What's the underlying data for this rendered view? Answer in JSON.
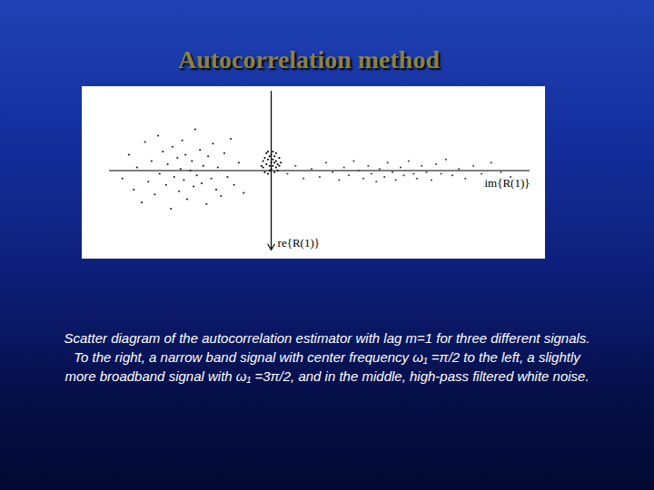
{
  "chart_data": {
    "type": "scatter",
    "title": "Autocorrelation method",
    "caption": [
      "Scatter diagram of the autocorrelation estimator with lag m=1 for three different signals.",
      "To the right, a narrow band signal with center frequency ω₁ =π/2 to the left, a slightly",
      "more broadband signal with ω₁ =3π/2, and in the middle, high-pass filtered white noise."
    ],
    "xlabel": "im{R(1)}",
    "ylabel": "re{R(1)}",
    "xlim": [
      -1,
      1.6
    ],
    "ylim": [
      -0.5,
      0.5
    ],
    "xticks": [],
    "yticks": [],
    "tick_labels": false,
    "grid": false,
    "series": [
      {
        "color": "#222222",
        "marker": "dot",
        "x": [
          -0.92,
          -0.88,
          -0.85,
          -0.83,
          -0.8,
          -0.78,
          -0.76,
          -0.74,
          -0.72,
          -0.7,
          -0.69,
          -0.67,
          -0.65,
          -0.64,
          -0.62,
          -0.61,
          -0.6,
          -0.58,
          -0.57,
          -0.56,
          -0.55,
          -0.54,
          -0.53,
          -0.52,
          -0.5,
          -0.49,
          -0.48,
          -0.47,
          -0.46,
          -0.44,
          -0.43,
          -0.42,
          -0.4,
          -0.39,
          -0.37,
          -0.36,
          -0.34,
          -0.33,
          -0.31,
          -0.29,
          -0.27,
          -0.25,
          -0.23,
          -0.2,
          -0.17
        ],
        "values": [
          0.05,
          -0.1,
          0.12,
          -0.02,
          0.2,
          -0.18,
          0.07,
          -0.06,
          0.15,
          -0.22,
          0.02,
          -0.12,
          0.09,
          -0.04,
          0.24,
          -0.15,
          0.04,
          -0.08,
          0.13,
          -0.01,
          -0.19,
          0.06,
          -0.1,
          0.18,
          0.0,
          -0.06,
          0.1,
          -0.26,
          0.03,
          -0.13,
          0.08,
          -0.03,
          0.21,
          -0.09,
          0.05,
          -0.17,
          0.12,
          -0.02,
          0.16,
          -0.11,
          0.04,
          -0.2,
          0.09,
          -0.05,
          0.14
        ]
      },
      {
        "color": "#000000",
        "marker": "dot",
        "x": [
          -0.05,
          -0.04,
          -0.04,
          -0.03,
          -0.03,
          -0.02,
          -0.02,
          -0.02,
          -0.01,
          -0.01,
          -0.01,
          0.0,
          0.0,
          0.0,
          0.01,
          0.01,
          0.01,
          0.02,
          0.02,
          0.02,
          0.03,
          0.03,
          0.03,
          0.04,
          0.04,
          0.05,
          0.05,
          -0.05,
          0.06,
          -0.06
        ],
        "values": [
          -0.02,
          -0.08,
          0.01,
          -0.11,
          -0.04,
          0.02,
          -0.07,
          -0.12,
          -0.03,
          -0.09,
          0.0,
          -0.05,
          -0.1,
          -0.01,
          -0.07,
          -0.03,
          -0.12,
          -0.05,
          0.01,
          -0.09,
          -0.02,
          -0.06,
          -0.11,
          -0.04,
          0.0,
          -0.08,
          -0.03,
          -0.06,
          -0.05,
          -0.03
        ]
      },
      {
        "color": "#444444",
        "marker": "dot",
        "x": [
          0.1,
          0.15,
          0.2,
          0.25,
          0.3,
          0.34,
          0.38,
          0.42,
          0.45,
          0.48,
          0.51,
          0.54,
          0.57,
          0.6,
          0.62,
          0.65,
          0.67,
          0.7,
          0.72,
          0.75,
          0.77,
          0.8,
          0.82,
          0.85,
          0.88,
          0.9,
          0.93,
          0.96,
          0.99,
          1.02,
          1.05,
          1.08,
          1.12,
          1.16,
          1.2,
          1.25,
          1.3,
          1.36,
          1.42,
          1.48
        ],
        "values": [
          0.02,
          -0.03,
          0.05,
          -0.01,
          0.04,
          -0.05,
          0.01,
          0.06,
          -0.02,
          0.03,
          -0.06,
          0.0,
          0.05,
          -0.03,
          0.02,
          0.07,
          -0.01,
          0.04,
          -0.05,
          0.01,
          0.06,
          -0.02,
          0.03,
          -0.06,
          0.02,
          0.05,
          -0.03,
          0.01,
          0.06,
          -0.04,
          0.02,
          -0.07,
          0.03,
          -0.01,
          0.05,
          -0.03,
          0.02,
          -0.05,
          0.01,
          0.04
        ]
      }
    ]
  }
}
